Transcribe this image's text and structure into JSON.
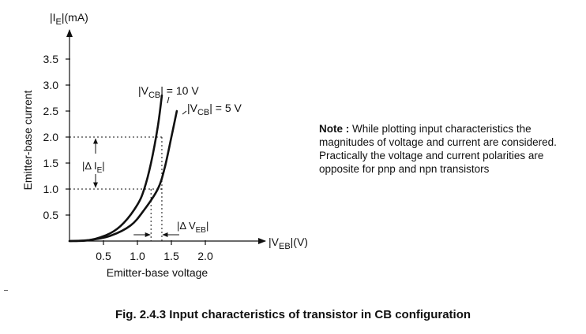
{
  "chart_data": {
    "type": "line",
    "x_axis": {
      "label_pre": "|V",
      "label_sub": "EB",
      "label_post": "|(V)",
      "description": "Emitter-base voltage",
      "ticks": [
        0.5,
        1.0,
        1.5,
        2.0
      ],
      "tick_labels": [
        "0.5",
        "1.0",
        "1.5",
        "2.0"
      ]
    },
    "y_axis": {
      "label_pre": "|I",
      "label_sub": "E",
      "label_post": "|(mA)",
      "description": "Emitter-base current",
      "ticks": [
        0.5,
        1.0,
        1.5,
        2.0,
        2.5,
        3.0,
        3.5
      ],
      "tick_labels": [
        "0.5",
        "1.0",
        "1.5",
        "2.0",
        "2.5",
        "3.0",
        "3.5"
      ]
    },
    "series": [
      {
        "name_pre": "|V",
        "name_sub": "CB",
        "name_post": "| = 10 V",
        "x": [
          0.0,
          0.3,
          0.6,
          0.8,
          1.0,
          1.1,
          1.2,
          1.3,
          1.36
        ],
        "y": [
          0.0,
          0.02,
          0.15,
          0.35,
          0.7,
          1.0,
          1.5,
          2.2,
          2.8
        ]
      },
      {
        "name_pre": "|V",
        "name_sub": "CB",
        "name_post": "| = 5 V",
        "x": [
          0.0,
          0.3,
          0.6,
          0.9,
          1.1,
          1.3,
          1.4,
          1.5,
          1.58
        ],
        "y": [
          0.0,
          0.02,
          0.1,
          0.3,
          0.6,
          1.0,
          1.4,
          2.0,
          2.5
        ]
      }
    ],
    "annotations": {
      "delta_ie": {
        "pre": "|Δ I",
        "sub": "E",
        "post": "|",
        "y_from": 1.0,
        "y_to": 2.0
      },
      "delta_veb": {
        "pre": "|Δ V",
        "sub": "EB",
        "post": "|",
        "x_from": 1.2,
        "x_to": 1.36
      }
    }
  },
  "note": {
    "label": "Note :",
    "text": "While plotting input characteristics the magnitudes of voltage and current are considered. Practically the voltage and current polarities are opposite for pnp and npn transistors"
  },
  "caption": "Fig. 2.4.3 Input characteristics of transistor in CB configuration"
}
